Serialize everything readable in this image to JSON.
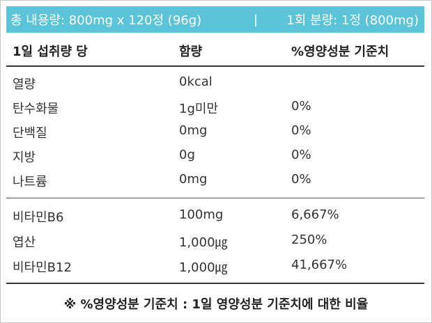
{
  "header": {
    "total": "총 내용량: 800mg x 120정 (96g)",
    "separator": "|",
    "serving": "1회 분량: 1정 (800mg)"
  },
  "columns": {
    "basis": "1일 섭취량 당",
    "amount": "함량",
    "dv": "%영양성분 기준치"
  },
  "nutrients": [
    {
      "name": "열량",
      "amount": "0kcal",
      "dv": ""
    },
    {
      "name": "탄수화물",
      "amount": "1g미만",
      "dv": "0%"
    },
    {
      "name": "단백질",
      "amount": "0mg",
      "dv": "0%"
    },
    {
      "name": "지방",
      "amount": "0g",
      "dv": "0%"
    },
    {
      "name": "나트륨",
      "amount": "0mg",
      "dv": "0%"
    }
  ],
  "vitamins": [
    {
      "name": "비타민B6",
      "amount": "100mg",
      "dv": "6,667%"
    },
    {
      "name": "엽산",
      "amount": "1,000㎍",
      "dv": "250%"
    },
    {
      "name": "비타민B12",
      "amount": "1,000㎍",
      "dv": "41,667%"
    }
  ],
  "footnote": "※ %영양성분 기준치 : 1일 영양성분 기준치에 대한 비율"
}
